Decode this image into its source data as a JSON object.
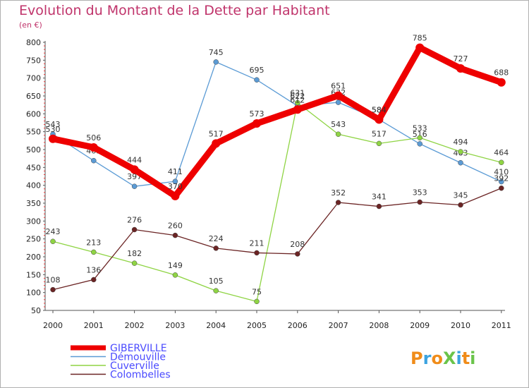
{
  "chart_data": {
    "type": "line",
    "title": "Evolution du Montant de la Dette par Habitant",
    "subtitle": "(en €)",
    "categories": [
      "2000",
      "2001",
      "2002",
      "2003",
      "2004",
      "2005",
      "2006",
      "2007",
      "2008",
      "2009",
      "2010",
      "2011"
    ],
    "ylim": [
      50,
      800
    ],
    "yticks": [
      50,
      100,
      150,
      200,
      250,
      300,
      350,
      400,
      450,
      500,
      550,
      600,
      650,
      700,
      750,
      800
    ],
    "grid": false,
    "legend_position": "bottom-left",
    "series": [
      {
        "name": "GIBERVILLE",
        "color": "#ee0000",
        "values": [
          530,
          506,
          444,
          370,
          517,
          573,
          612,
          651,
          584,
          785,
          727,
          688
        ]
      },
      {
        "name": "Démouville",
        "color": "#5b9bd5",
        "values": [
          543,
          469,
          397,
          411,
          745,
          695,
          622,
          632,
          584,
          516,
          463,
          410
        ]
      },
      {
        "name": "Cuverville",
        "color": "#8fd444",
        "values": [
          243,
          213,
          182,
          149,
          105,
          75,
          631,
          543,
          517,
          533,
          494,
          464
        ]
      },
      {
        "name": "Colombelles",
        "color": "#6b2424",
        "values": [
          108,
          136,
          276,
          260,
          224,
          211,
          208,
          352,
          341,
          353,
          345,
          392
        ]
      }
    ],
    "logo_text": "ProXiti"
  }
}
